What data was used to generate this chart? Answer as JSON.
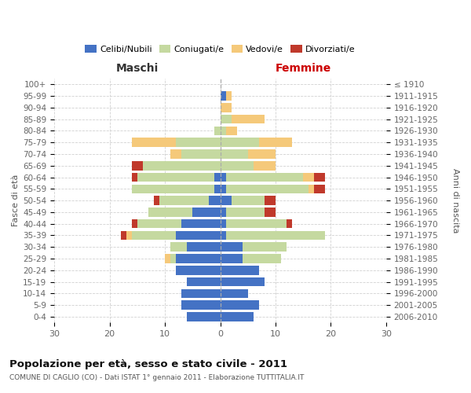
{
  "age_groups": [
    "0-4",
    "5-9",
    "10-14",
    "15-19",
    "20-24",
    "25-29",
    "30-34",
    "35-39",
    "40-44",
    "45-49",
    "50-54",
    "55-59",
    "60-64",
    "65-69",
    "70-74",
    "75-79",
    "80-84",
    "85-89",
    "90-94",
    "95-99",
    "100+"
  ],
  "birth_years": [
    "2006-2010",
    "2001-2005",
    "1996-2000",
    "1991-1995",
    "1986-1990",
    "1981-1985",
    "1976-1980",
    "1971-1975",
    "1966-1970",
    "1961-1965",
    "1956-1960",
    "1951-1955",
    "1946-1950",
    "1941-1945",
    "1936-1940",
    "1931-1935",
    "1926-1930",
    "1921-1925",
    "1916-1920",
    "1911-1915",
    "≤ 1910"
  ],
  "maschi": {
    "celibi": [
      6,
      7,
      7,
      6,
      8,
      8,
      6,
      8,
      7,
      5,
      2,
      1,
      1,
      0,
      0,
      0,
      0,
      0,
      0,
      0,
      0
    ],
    "coniugati": [
      0,
      0,
      0,
      0,
      0,
      1,
      3,
      8,
      8,
      8,
      9,
      15,
      14,
      14,
      7,
      8,
      1,
      0,
      0,
      0,
      0
    ],
    "vedovi": [
      0,
      0,
      0,
      0,
      0,
      1,
      0,
      1,
      0,
      0,
      0,
      0,
      0,
      0,
      2,
      8,
      0,
      0,
      0,
      0,
      0
    ],
    "divorziati": [
      0,
      0,
      0,
      0,
      0,
      0,
      0,
      1,
      1,
      0,
      1,
      0,
      1,
      2,
      0,
      0,
      0,
      0,
      0,
      0,
      0
    ]
  },
  "femmine": {
    "nubili": [
      6,
      7,
      5,
      8,
      7,
      4,
      4,
      1,
      1,
      1,
      2,
      1,
      1,
      0,
      0,
      0,
      0,
      0,
      0,
      1,
      0
    ],
    "coniugate": [
      0,
      0,
      0,
      0,
      0,
      7,
      8,
      18,
      11,
      7,
      6,
      15,
      14,
      6,
      5,
      7,
      1,
      2,
      0,
      0,
      0
    ],
    "vedove": [
      0,
      0,
      0,
      0,
      0,
      0,
      0,
      0,
      0,
      0,
      0,
      1,
      2,
      4,
      5,
      6,
      2,
      6,
      2,
      1,
      0
    ],
    "divorziate": [
      0,
      0,
      0,
      0,
      0,
      0,
      0,
      0,
      1,
      2,
      2,
      2,
      2,
      0,
      0,
      0,
      0,
      0,
      0,
      0,
      0
    ]
  },
  "colors": {
    "celibi_nubili": "#4472C4",
    "coniugati": "#C5D9A0",
    "vedovi": "#F5C97A",
    "divorziati": "#C0392B"
  },
  "title": "Popolazione per età, sesso e stato civile - 2011",
  "subtitle": "COMUNE DI CAGLIO (CO) - Dati ISTAT 1° gennaio 2011 - Elaborazione TUTTITALIA.IT",
  "header_left": "Maschi",
  "header_right": "Femmine",
  "ylabel_left": "Fasce di età",
  "ylabel_right": "Anni di nascita",
  "xlim": 30,
  "background_color": "#ffffff",
  "grid_color": "#cccccc",
  "legend_labels": [
    "Celibi/Nubili",
    "Coniugati/e",
    "Vedovi/e",
    "Divorziati/e"
  ]
}
